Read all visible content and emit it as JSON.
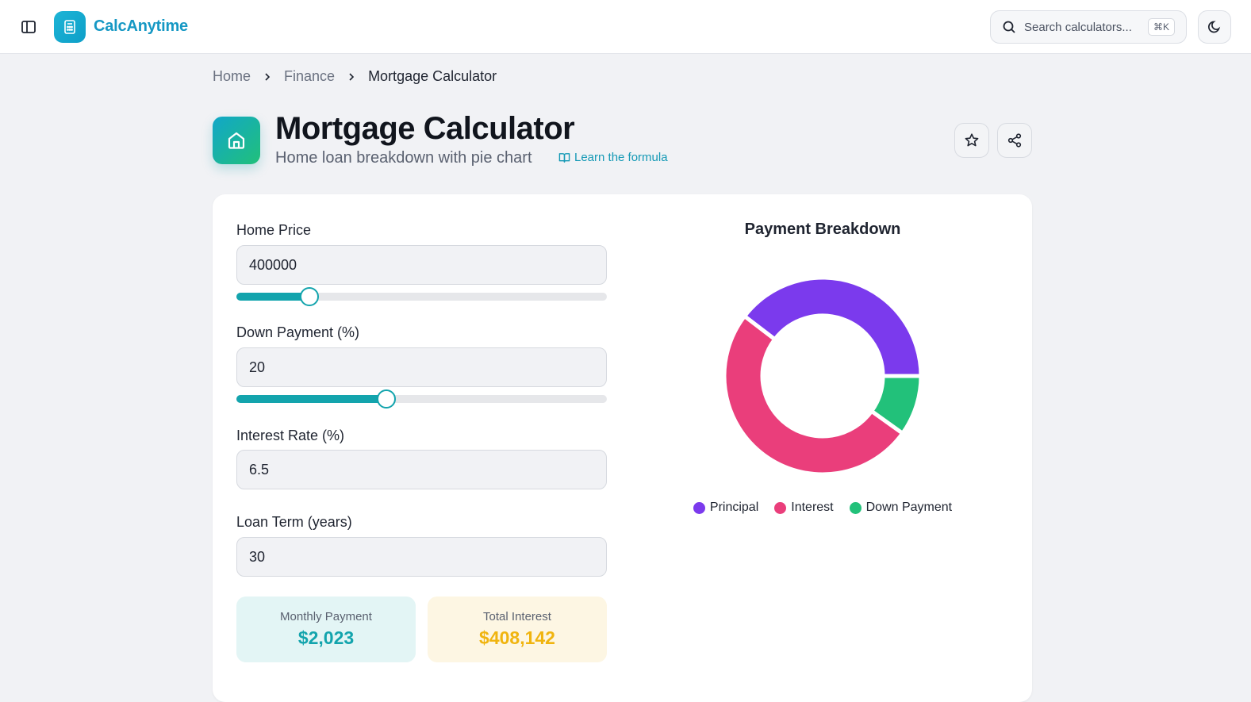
{
  "header": {
    "brand": "CalcAnytime",
    "search_placeholder": "Search calculators...",
    "search_shortcut": "⌘K",
    "accent": "#1698c4"
  },
  "breadcrumb": {
    "items": [
      "Home",
      "Finance"
    ],
    "current": "Mortgage Calculator"
  },
  "page": {
    "title": "Mortgage Calculator",
    "subtitle": "Home loan breakdown with pie chart",
    "learn_link": "Learn the formula"
  },
  "form": {
    "home_price": {
      "label": "Home Price",
      "value": "400000",
      "slider_fraction": 0.197
    },
    "down_payment": {
      "label": "Down Payment (%)",
      "value": "20",
      "slider_fraction": 0.405
    },
    "interest_rate": {
      "label": "Interest Rate (%)",
      "value": "6.5"
    },
    "loan_term": {
      "label": "Loan Term (years)",
      "value": "30"
    }
  },
  "results": {
    "monthly": {
      "label": "Monthly Payment",
      "value": "$2,023",
      "color": "#13a4ad",
      "bg": "#e3f5f5"
    },
    "interest": {
      "label": "Total Interest",
      "value": "$408,142",
      "color": "#f0b40f",
      "bg": "#fdf6e3"
    }
  },
  "chart_data": {
    "type": "pie",
    "title": "Payment Breakdown",
    "categories": [
      "Principal",
      "Interest",
      "Down Payment"
    ],
    "values": [
      320000,
      408142,
      80000
    ],
    "colors": [
      "#7b3aed",
      "#ea3e7b",
      "#22c17a"
    ],
    "legend": "bottom"
  }
}
